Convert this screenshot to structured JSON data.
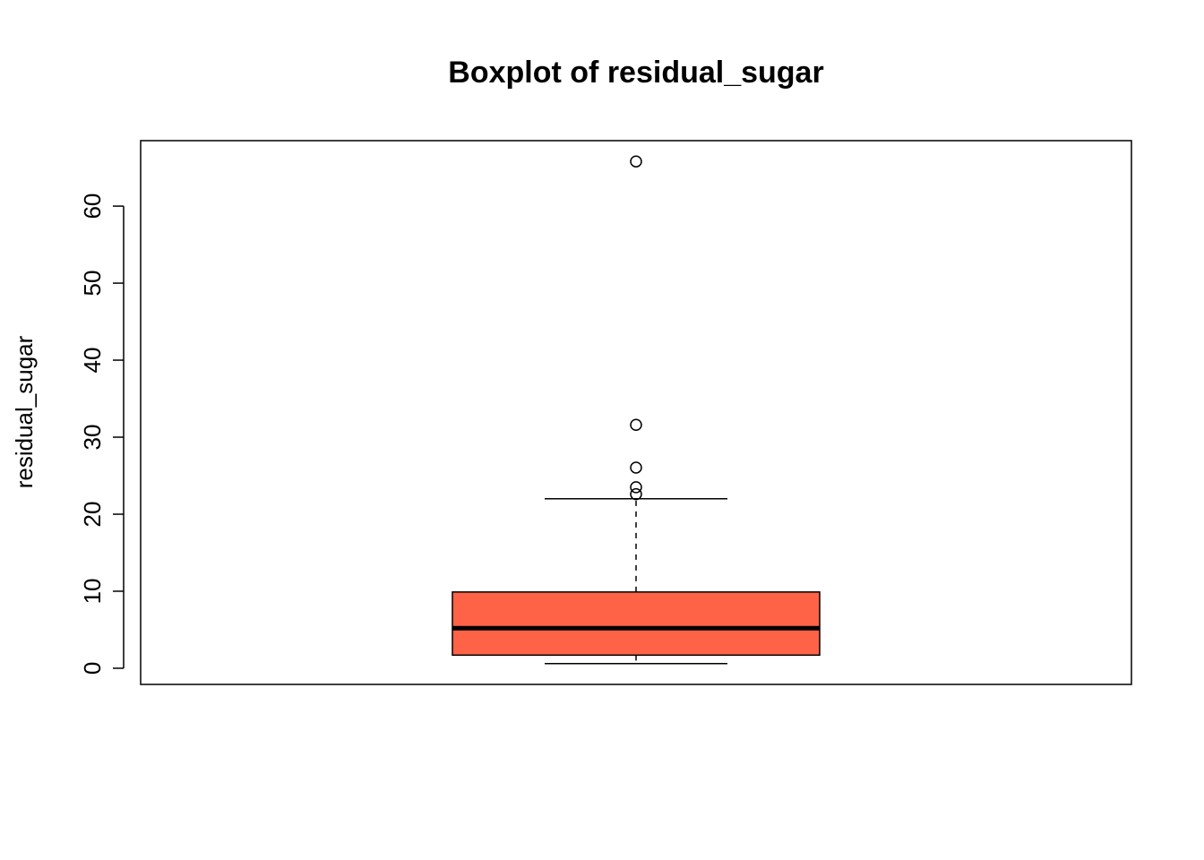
{
  "chart_data": {
    "type": "boxplot",
    "title": "Boxplot of residual_sugar",
    "xlabel": "",
    "ylabel": "residual_sugar",
    "ylim": [
      -2.1,
      68.5
    ],
    "yticks": [
      0,
      10,
      20,
      30,
      40,
      50,
      60
    ],
    "grid": false,
    "box": {
      "lower_whisker": 0.6,
      "q1": 1.7,
      "median": 5.2,
      "q3": 9.9,
      "upper_whisker": 22.0,
      "outliers": [
        22.6,
        23.5,
        26.05,
        31.6,
        65.8
      ],
      "fill": "#ff6347"
    }
  }
}
